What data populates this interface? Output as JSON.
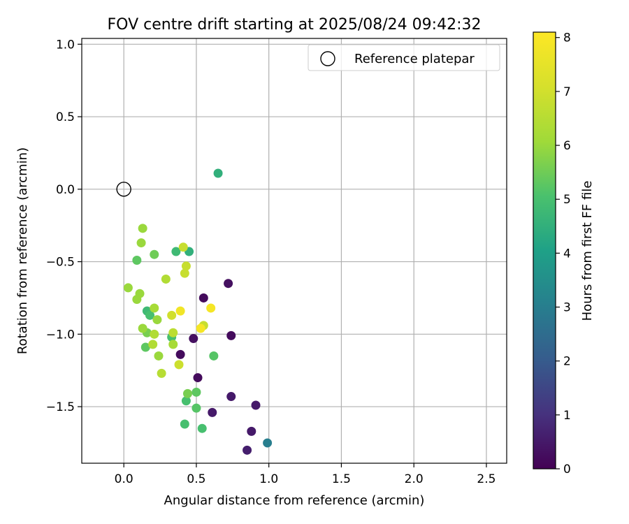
{
  "chart_data": {
    "type": "scatter",
    "title": "FOV centre drift starting at 2025/08/24 09:42:32",
    "xlabel": "Angular distance from reference (arcmin)",
    "ylabel": "Rotation from reference (arcmin)",
    "xlim": [
      -0.29,
      2.64
    ],
    "ylim": [
      -1.89,
      1.04
    ],
    "xticks": [
      0.0,
      0.5,
      1.0,
      1.5,
      2.0,
      2.5
    ],
    "xtick_labels": [
      "0.0",
      "0.5",
      "1.0",
      "1.5",
      "2.0",
      "2.5"
    ],
    "yticks": [
      1.0,
      0.5,
      0.0,
      -0.5,
      -1.0,
      -1.5
    ],
    "ytick_labels": [
      "1.0",
      "0.5",
      "0.0",
      "−0.5",
      "−1.0",
      "−1.5"
    ],
    "grid": true,
    "legend": {
      "placement": "upper right",
      "entries": [
        {
          "label": "Reference platepar",
          "marker": "open-circle"
        }
      ]
    },
    "reference": {
      "x": 0.0,
      "y": 0.0
    },
    "colorbar": {
      "label": "Hours from first FF file",
      "colormap": "viridis",
      "range": [
        0,
        8.1
      ],
      "ticks": [
        0,
        1,
        2,
        3,
        4,
        5,
        6,
        7,
        8
      ],
      "tick_labels": [
        "0",
        "1",
        "2",
        "3",
        "4",
        "5",
        "6",
        "7",
        "8"
      ]
    },
    "points": [
      {
        "x": 0.85,
        "y": -1.8,
        "hours": 0.6
      },
      {
        "x": 0.88,
        "y": -1.67,
        "hours": 0.5
      },
      {
        "x": 0.91,
        "y": -1.49,
        "hours": 0.5
      },
      {
        "x": 0.74,
        "y": -1.43,
        "hours": 0.5
      },
      {
        "x": 0.61,
        "y": -1.54,
        "hours": 0.5
      },
      {
        "x": 0.51,
        "y": -1.3,
        "hours": 0.2
      },
      {
        "x": 0.48,
        "y": -1.03,
        "hours": 0.3
      },
      {
        "x": 0.39,
        "y": -1.14,
        "hours": 0.2
      },
      {
        "x": 0.55,
        "y": -0.75,
        "hours": 0.2
      },
      {
        "x": 0.72,
        "y": -0.65,
        "hours": 0.3
      },
      {
        "x": 0.74,
        "y": -1.01,
        "hours": 0.2
      },
      {
        "x": 0.99,
        "y": -1.75,
        "hours": 3.0
      },
      {
        "x": 0.65,
        "y": 0.11,
        "hours": 4.5
      },
      {
        "x": 0.45,
        "y": -0.43,
        "hours": 4.5
      },
      {
        "x": 0.36,
        "y": -0.43,
        "hours": 4.8
      },
      {
        "x": 0.16,
        "y": -0.84,
        "hours": 4.8
      },
      {
        "x": 0.18,
        "y": -0.87,
        "hours": 5.0
      },
      {
        "x": 0.33,
        "y": -1.02,
        "hours": 5.0
      },
      {
        "x": 0.62,
        "y": -1.15,
        "hours": 5.2
      },
      {
        "x": 0.42,
        "y": -1.62,
        "hours": 5.0
      },
      {
        "x": 0.54,
        "y": -1.65,
        "hours": 5.0
      },
      {
        "x": 0.43,
        "y": -1.46,
        "hours": 5.0
      },
      {
        "x": 0.5,
        "y": -1.4,
        "hours": 5.3
      },
      {
        "x": 0.44,
        "y": -1.41,
        "hours": 5.6
      },
      {
        "x": 0.5,
        "y": -1.51,
        "hours": 5.2
      },
      {
        "x": 0.15,
        "y": -1.09,
        "hours": 5.3
      },
      {
        "x": 0.09,
        "y": -0.49,
        "hours": 5.3
      },
      {
        "x": 0.21,
        "y": -0.45,
        "hours": 5.5
      },
      {
        "x": 0.16,
        "y": -0.99,
        "hours": 5.6
      },
      {
        "x": 0.13,
        "y": -0.27,
        "hours": 6.0
      },
      {
        "x": 0.12,
        "y": -0.37,
        "hours": 6.0
      },
      {
        "x": 0.03,
        "y": -0.68,
        "hours": 6.0
      },
      {
        "x": 0.11,
        "y": -0.72,
        "hours": 6.0
      },
      {
        "x": 0.09,
        "y": -0.76,
        "hours": 6.0
      },
      {
        "x": 0.13,
        "y": -0.96,
        "hours": 6.0
      },
      {
        "x": 0.21,
        "y": -0.82,
        "hours": 6.2
      },
      {
        "x": 0.23,
        "y": -0.9,
        "hours": 6.0
      },
      {
        "x": 0.24,
        "y": -1.15,
        "hours": 6.0
      },
      {
        "x": 0.2,
        "y": -1.07,
        "hours": 6.4
      },
      {
        "x": 0.21,
        "y": -1.0,
        "hours": 6.4
      },
      {
        "x": 0.29,
        "y": -0.62,
        "hours": 6.4
      },
      {
        "x": 0.26,
        "y": -1.27,
        "hours": 6.5
      },
      {
        "x": 0.34,
        "y": -1.07,
        "hours": 6.2
      },
      {
        "x": 0.34,
        "y": -0.99,
        "hours": 6.6
      },
      {
        "x": 0.33,
        "y": -0.87,
        "hours": 7.0
      },
      {
        "x": 0.38,
        "y": -1.21,
        "hours": 6.9
      },
      {
        "x": 0.41,
        "y": -0.4,
        "hours": 6.8
      },
      {
        "x": 0.43,
        "y": -0.53,
        "hours": 6.8
      },
      {
        "x": 0.42,
        "y": -0.58,
        "hours": 6.8
      },
      {
        "x": 0.55,
        "y": -0.94,
        "hours": 6.8
      },
      {
        "x": 0.39,
        "y": -0.84,
        "hours": 7.8
      },
      {
        "x": 0.6,
        "y": -0.82,
        "hours": 7.9
      },
      {
        "x": 0.53,
        "y": -0.96,
        "hours": 7.9
      }
    ]
  }
}
